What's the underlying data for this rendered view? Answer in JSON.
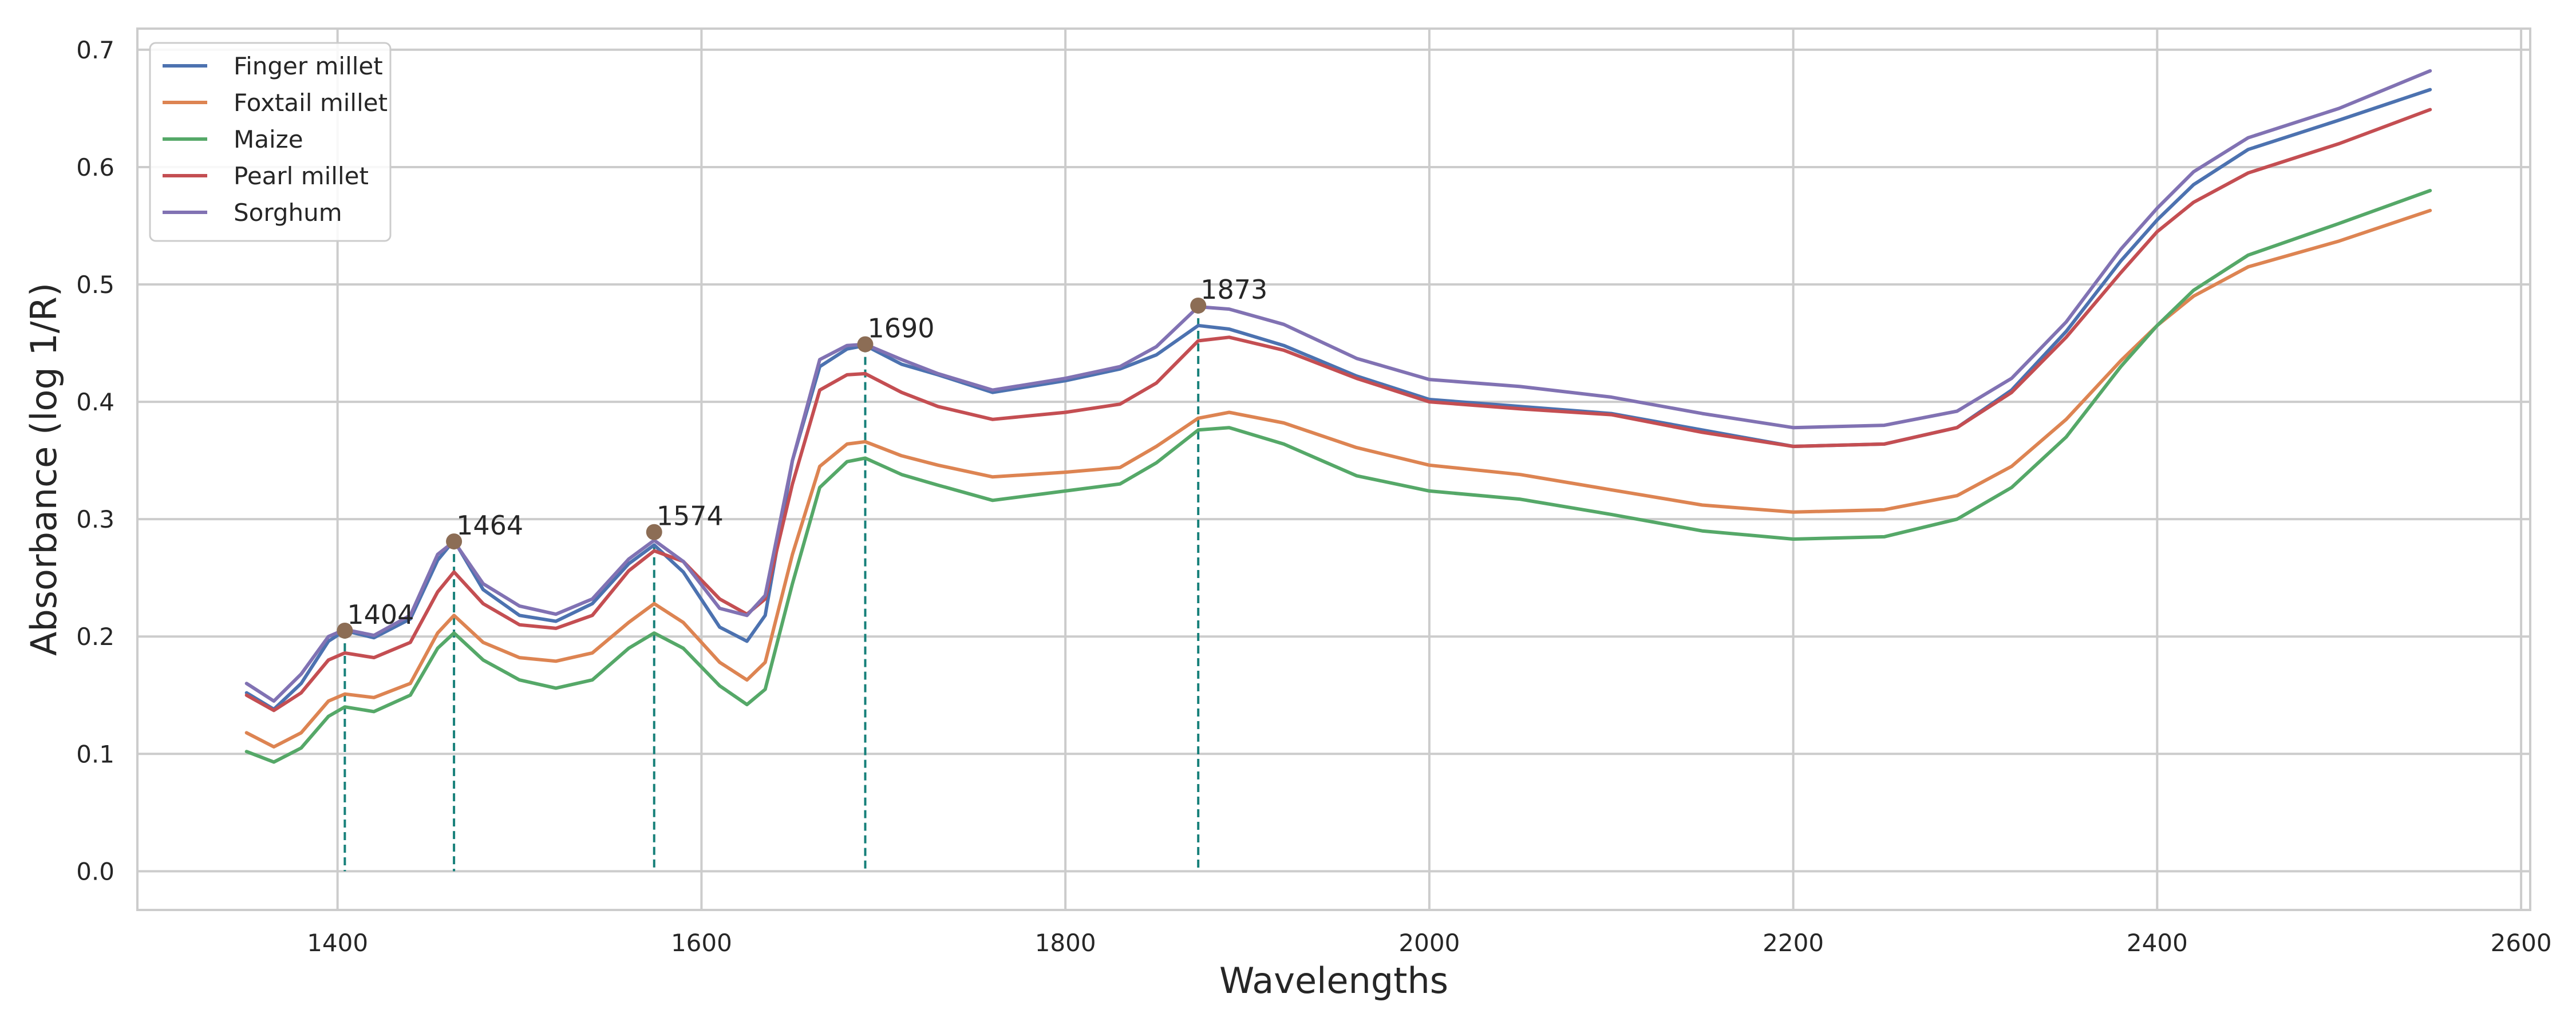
{
  "chart_data": {
    "type": "line",
    "xlabel": "Wavelengths",
    "ylabel": "Absorbance (log 1/R)",
    "xlim": [
      1290,
      2605
    ],
    "ylim": [
      -0.033,
      0.718
    ],
    "x_ticks": [
      1400,
      1600,
      1800,
      2000,
      2200,
      2400,
      2600
    ],
    "y_ticks": [
      0.0,
      0.1,
      0.2,
      0.3,
      0.4,
      0.5,
      0.6,
      0.7
    ],
    "x_tick_labels": [
      "1400",
      "1600",
      "1800",
      "2000",
      "2200",
      "2400",
      "2600"
    ],
    "y_tick_labels": [
      "0.0",
      "0.1",
      "0.2",
      "0.3",
      "0.4",
      "0.5",
      "0.6",
      "0.7"
    ],
    "grid": true,
    "legend_position": "top-left",
    "x": [
      1350,
      1365,
      1380,
      1395,
      1404,
      1420,
      1440,
      1455,
      1464,
      1480,
      1500,
      1520,
      1540,
      1560,
      1574,
      1590,
      1610,
      1625,
      1635,
      1650,
      1665,
      1680,
      1690,
      1710,
      1730,
      1760,
      1800,
      1830,
      1850,
      1873,
      1890,
      1920,
      1960,
      2000,
      2050,
      2100,
      2150,
      2200,
      2250,
      2290,
      2320,
      2350,
      2380,
      2400,
      2420,
      2450,
      2500,
      2550
    ],
    "series": [
      {
        "name": "Finger millet",
        "color": "#4c72b0",
        "values": [
          0.152,
          0.138,
          0.16,
          0.196,
          0.205,
          0.199,
          0.215,
          0.265,
          0.282,
          0.24,
          0.218,
          0.213,
          0.228,
          0.262,
          0.278,
          0.255,
          0.208,
          0.196,
          0.218,
          0.35,
          0.43,
          0.445,
          0.448,
          0.432,
          0.423,
          0.408,
          0.418,
          0.428,
          0.44,
          0.465,
          0.462,
          0.448,
          0.422,
          0.402,
          0.396,
          0.39,
          0.376,
          0.362,
          0.364,
          0.378,
          0.41,
          0.46,
          0.52,
          0.555,
          0.585,
          0.615,
          0.64,
          0.666
        ]
      },
      {
        "name": "Foxtail millet",
        "color": "#dd8452",
        "values": [
          0.118,
          0.106,
          0.118,
          0.145,
          0.151,
          0.148,
          0.16,
          0.203,
          0.218,
          0.195,
          0.182,
          0.179,
          0.186,
          0.212,
          0.228,
          0.212,
          0.178,
          0.163,
          0.178,
          0.27,
          0.345,
          0.364,
          0.366,
          0.354,
          0.346,
          0.336,
          0.34,
          0.344,
          0.362,
          0.386,
          0.391,
          0.382,
          0.361,
          0.346,
          0.338,
          0.325,
          0.312,
          0.306,
          0.308,
          0.32,
          0.345,
          0.385,
          0.435,
          0.465,
          0.49,
          0.515,
          0.537,
          0.563
        ]
      },
      {
        "name": "Maize",
        "color": "#55a868",
        "values": [
          0.102,
          0.093,
          0.105,
          0.132,
          0.14,
          0.136,
          0.15,
          0.19,
          0.203,
          0.18,
          0.163,
          0.156,
          0.163,
          0.19,
          0.203,
          0.19,
          0.158,
          0.142,
          0.155,
          0.245,
          0.327,
          0.349,
          0.352,
          0.338,
          0.329,
          0.316,
          0.324,
          0.33,
          0.348,
          0.376,
          0.378,
          0.364,
          0.337,
          0.324,
          0.317,
          0.304,
          0.29,
          0.283,
          0.285,
          0.3,
          0.327,
          0.37,
          0.43,
          0.465,
          0.495,
          0.525,
          0.552,
          0.58
        ]
      },
      {
        "name": "Pearl millet",
        "color": "#c44e52",
        "values": [
          0.15,
          0.137,
          0.152,
          0.18,
          0.186,
          0.182,
          0.195,
          0.238,
          0.255,
          0.228,
          0.21,
          0.207,
          0.218,
          0.256,
          0.273,
          0.264,
          0.232,
          0.219,
          0.232,
          0.33,
          0.41,
          0.423,
          0.424,
          0.408,
          0.396,
          0.385,
          0.391,
          0.398,
          0.416,
          0.452,
          0.455,
          0.444,
          0.42,
          0.4,
          0.394,
          0.389,
          0.374,
          0.362,
          0.364,
          0.378,
          0.408,
          0.455,
          0.51,
          0.545,
          0.57,
          0.595,
          0.62,
          0.649
        ]
      },
      {
        "name": "Sorghum",
        "color": "#8172b3",
        "values": [
          0.16,
          0.145,
          0.168,
          0.2,
          0.206,
          0.201,
          0.218,
          0.27,
          0.281,
          0.245,
          0.226,
          0.219,
          0.232,
          0.266,
          0.282,
          0.264,
          0.224,
          0.218,
          0.235,
          0.35,
          0.436,
          0.448,
          0.449,
          0.436,
          0.424,
          0.41,
          0.42,
          0.43,
          0.447,
          0.481,
          0.479,
          0.466,
          0.437,
          0.419,
          0.413,
          0.404,
          0.39,
          0.378,
          0.38,
          0.392,
          0.42,
          0.468,
          0.53,
          0.565,
          0.596,
          0.625,
          0.65,
          0.682
        ]
      }
    ],
    "peaks": [
      {
        "x": 1404,
        "y": 0.205,
        "label": "1404"
      },
      {
        "x": 1464,
        "y": 0.281,
        "label": "1464"
      },
      {
        "x": 1574,
        "y": 0.289,
        "label": "1574"
      },
      {
        "x": 1690,
        "y": 0.449,
        "label": "1690"
      },
      {
        "x": 1873,
        "y": 0.482,
        "label": "1873"
      }
    ],
    "peak_marker_color": "#8c6d55",
    "peak_line_color": "#17807a"
  }
}
